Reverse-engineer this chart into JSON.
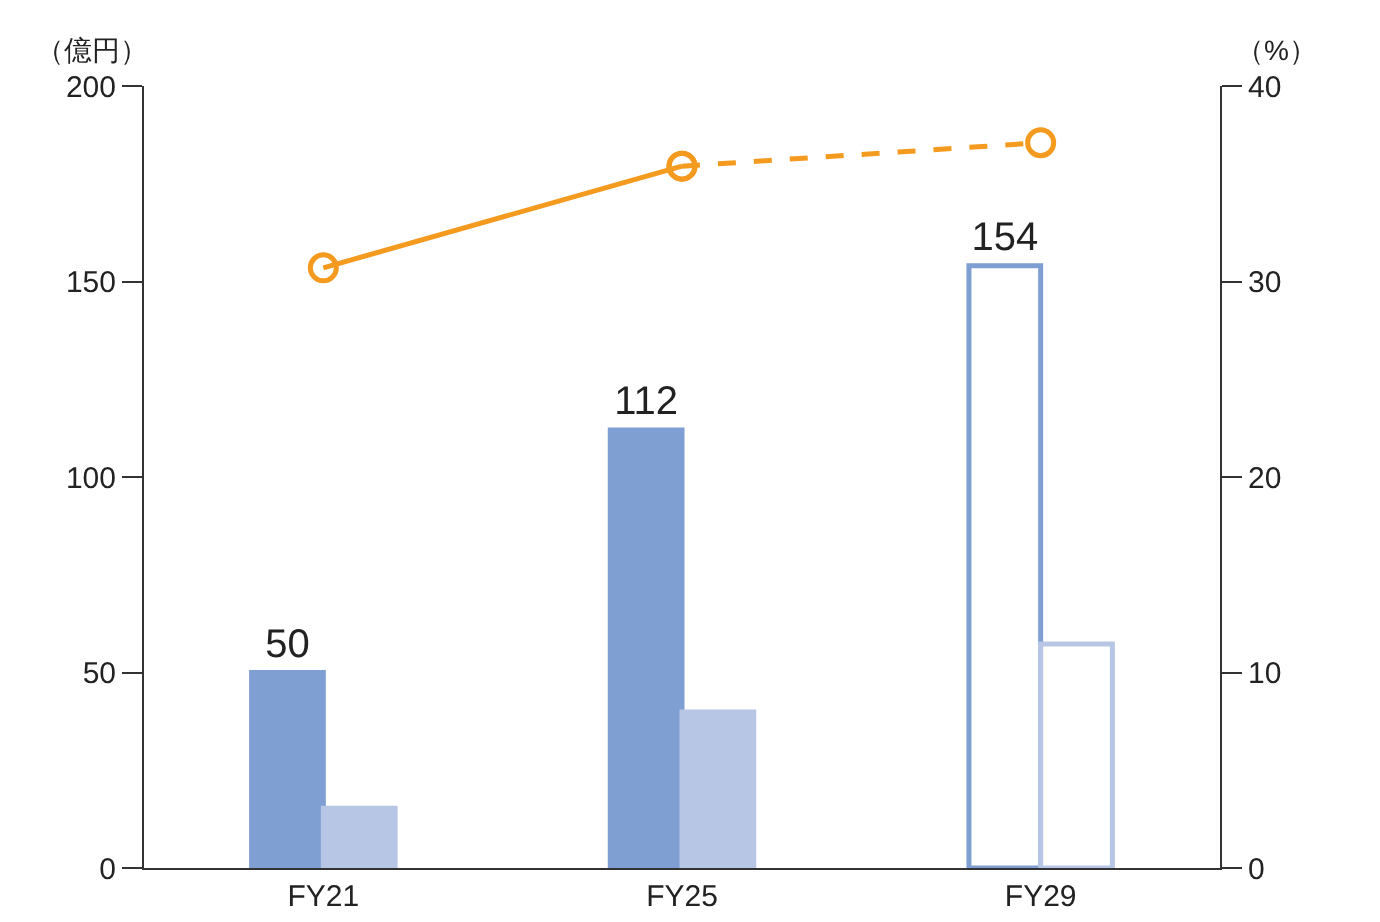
{
  "chart_data": {
    "type": "bar",
    "categories": [
      "FY21",
      "FY25",
      "FY29"
    ],
    "ylabel": "（億円）",
    "y2label": "（%）",
    "ylim": [
      0,
      200
    ],
    "yticks": [
      0,
      50,
      100,
      150,
      200
    ],
    "y2lim": [
      0,
      40
    ],
    "y2ticks": [
      0,
      10,
      20,
      30,
      40
    ],
    "series": [
      {
        "color": "#7f9fd3",
        "colors": [
          "#7f9fd3",
          "#7f9fd3",
          "#ffffff"
        ],
        "values": [
          50,
          112,
          154
        ],
        "value_labels": [
          "50",
          "112",
          "154"
        ]
      },
      {
        "color": "#b7c6e5",
        "colors": [
          "#b7c6e5",
          "#b7c6e5",
          "#ffffff"
        ],
        "values": [
          15.3,
          39.9,
          57.3
        ]
      },
      {
        "type": "line",
        "axis": "y2",
        "color": "#f39a1f",
        "line_style": "solid",
        "marker": "circle",
        "values": [
          30.7,
          35.9,
          null
        ]
      },
      {
        "type": "line",
        "axis": "y2",
        "color": "#f39a1f",
        "line_style": "dashed",
        "marker": "circle",
        "values": [
          null,
          35.9,
          37.1
        ]
      }
    ],
    "grid": false
  }
}
